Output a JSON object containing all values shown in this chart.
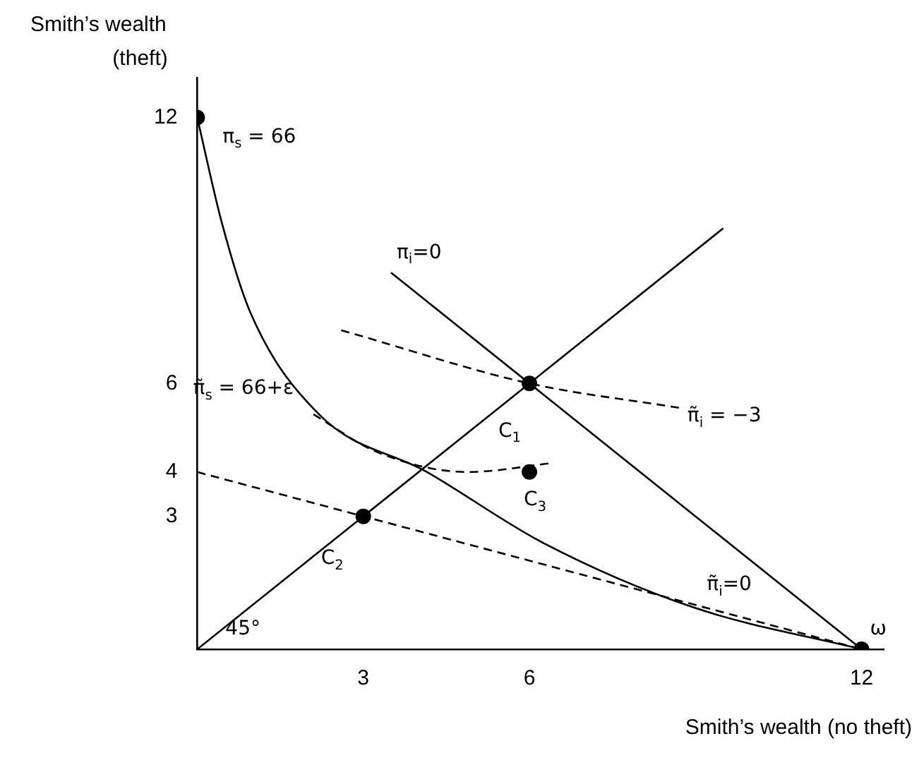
{
  "chart_data": {
    "type": "line",
    "xlabel": "Smith’s wealth (no theft)",
    "ylabel": "Smith’s wealth (theft)",
    "xlim": [
      0,
      12.4
    ],
    "ylim": [
      0,
      12.9
    ],
    "xticks": [
      3,
      6,
      12
    ],
    "yticks": [
      3,
      4,
      6,
      12
    ],
    "grid": false,
    "legend": false,
    "series": [
      {
        "type": "line",
        "x": [
          0,
          9.5
        ],
        "values": [
          0,
          9.5
        ],
        "color": "#000000",
        "line_style": "solid"
      },
      {
        "type": "line",
        "x": [
          3.5,
          12
        ],
        "values": [
          8.5,
          0
        ],
        "color": "#000000",
        "line_style": "solid"
      },
      {
        "type": "line",
        "x": [
          0,
          0.45,
          0.96,
          2.2,
          4.15,
          6.25,
          8.95,
          12
        ],
        "values": [
          12,
          9.6,
          7.6,
          5.3,
          4.0,
          2.4,
          0.95,
          0
        ],
        "color": "#000000",
        "line_style": "solid"
      },
      {
        "type": "line",
        "x": [
          0,
          12
        ],
        "values": [
          4,
          0
        ],
        "color": "#000000",
        "line_style": "dashed"
      },
      {
        "type": "line",
        "x": [
          2.6,
          6,
          8.7
        ],
        "values": [
          7.2,
          6,
          5.45
        ],
        "color": "#000000",
        "line_style": "dashed"
      },
      {
        "type": "line",
        "x": [
          2.1,
          3.25,
          4.9,
          6.4
        ],
        "values": [
          5.3,
          4.45,
          4.0,
          4.2
        ],
        "color": "#000000",
        "line_style": "dashed"
      },
      {
        "type": "scatter",
        "x": [
          0,
          3,
          6,
          6,
          12
        ],
        "values": [
          12,
          3,
          6,
          4,
          0
        ],
        "color": "#000000",
        "marker": "circle"
      }
    ],
    "annotations": [
      {
        "text": "π$_{s}$ = 66",
        "x": 0,
        "y": 12
      },
      {
        "text": "π$_{i}$=0",
        "x": 3.5,
        "y": 8.5
      },
      {
        "text": "π̃$_{i}$ = −3",
        "x": 8.7,
        "y": 5.45
      },
      {
        "text": "π̃$_{s}$ = 66+ε",
        "x": 2.1,
        "y": 5.3
      },
      {
        "text": "C$_{1}$",
        "x": 6,
        "y": 6
      },
      {
        "text": "C$_{3}$",
        "x": 6,
        "y": 4
      },
      {
        "text": "C$_{2}$",
        "x": 3,
        "y": 3
      },
      {
        "text": "π̃$_{i}$=0",
        "x": 9,
        "y": 1
      },
      {
        "text": "ω",
        "x": 12,
        "y": 0
      },
      {
        "text": "45°",
        "x": 0,
        "y": 0
      }
    ]
  }
}
